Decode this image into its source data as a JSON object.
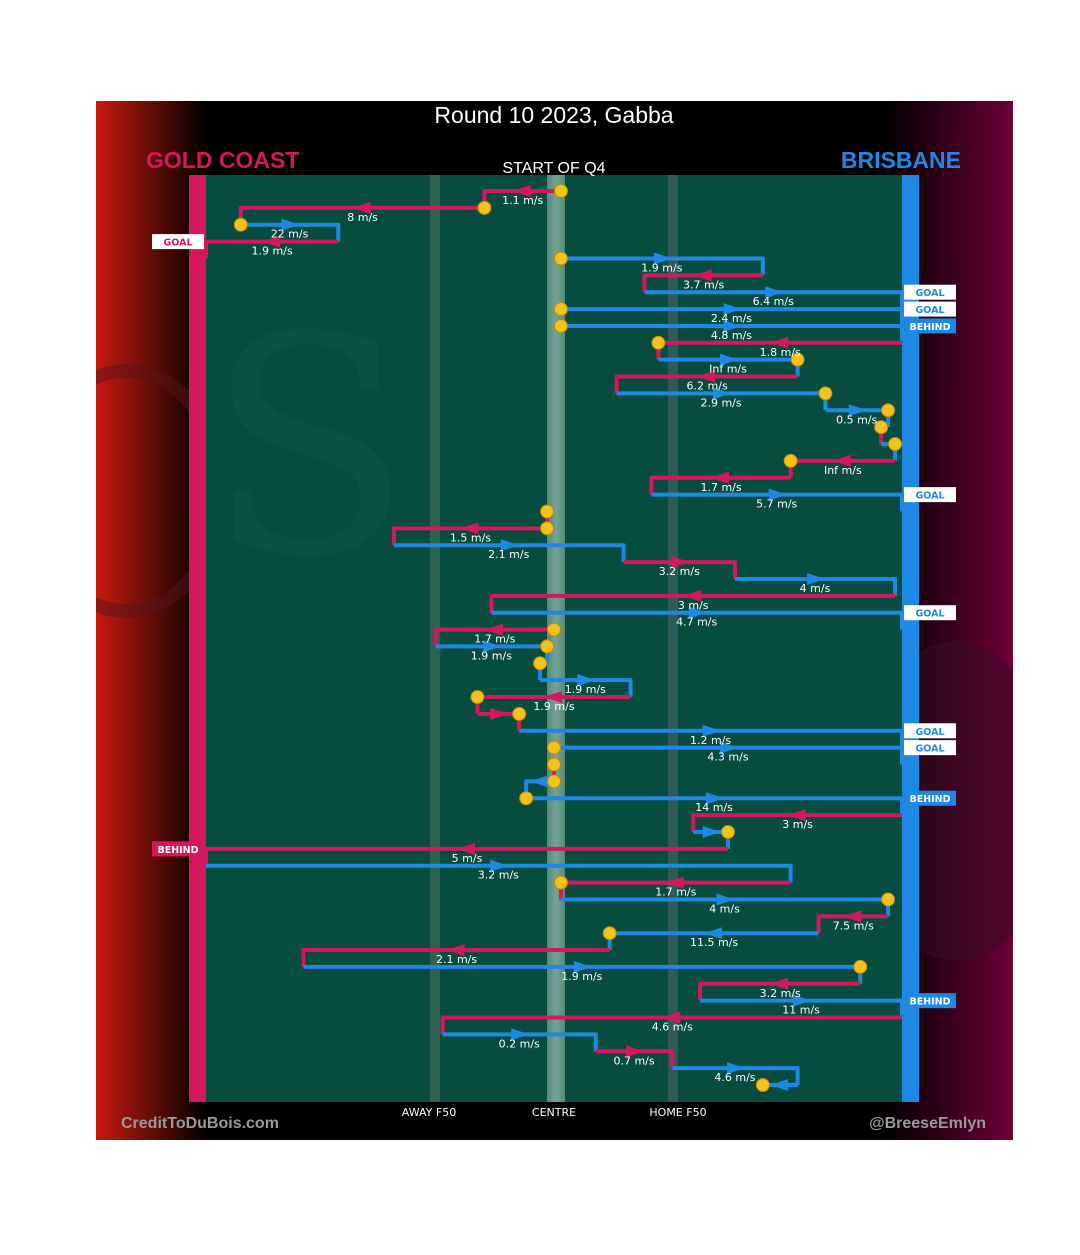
{
  "title": "Round 10 2023, Gabba",
  "subtitle": "START OF Q4",
  "teams": {
    "away": {
      "name": "GOLD COAST",
      "color": "#d4185b"
    },
    "home": {
      "name": "BRISBANE",
      "color": "#1e88e5"
    }
  },
  "axis_labels": {
    "away_f50": "AWAY F50",
    "centre": "CENTRE",
    "home_f50": "HOME F50"
  },
  "credits": {
    "left": "CreditToDuBois.com",
    "right": "@BreeseEmlyn"
  },
  "colors": {
    "background": "#000000",
    "ground": "#064d3f",
    "ball": "#f3c21b"
  },
  "chart_data": {
    "type": "line",
    "description_axis": "x = field position (0 = Gold Coast goal line, 100 = Brisbane goal line); chains listed top to bottom in time order",
    "xlim": [
      0,
      100
    ],
    "guides": [
      {
        "name": "AWAY F50",
        "x": 32
      },
      {
        "name": "CENTRE",
        "x": 50
      },
      {
        "name": "HOME F50",
        "x": 67.6
      }
    ],
    "segments": [
      {
        "team": "away",
        "from": 51,
        "to": 40,
        "label": "1.1 m/s",
        "start_ball": true
      },
      {
        "team": "away",
        "from": 40,
        "to": 5,
        "label": "8 m/s",
        "start_ball": true
      },
      {
        "team": "home",
        "from": 5,
        "to": 19,
        "label": "22 m/s",
        "start_ball": true
      },
      {
        "team": "away",
        "from": 19,
        "to": 0,
        "label": "1.9 m/s",
        "outcome": "GOAL"
      },
      {
        "team": "home",
        "from": 51,
        "to": 80,
        "label": "1.9 m/s",
        "start_ball": true
      },
      {
        "team": "away",
        "from": 80,
        "to": 63,
        "label": "3.7 m/s"
      },
      {
        "team": "home",
        "from": 63,
        "to": 100,
        "label": "6.4 m/s",
        "outcome": "GOAL"
      },
      {
        "team": "home",
        "from": 51,
        "to": 100,
        "label": "2.4 m/s",
        "start_ball": true,
        "outcome": "GOAL"
      },
      {
        "team": "home",
        "from": 51,
        "to": 100,
        "label": "4.8 m/s",
        "start_ball": true,
        "outcome": "BEHIND"
      },
      {
        "team": "away",
        "from": 100,
        "to": 65,
        "label": "1.8 m/s",
        "end_ball": true
      },
      {
        "team": "home",
        "from": 65,
        "to": 85,
        "label": "Inf m/s",
        "end_ball": true
      },
      {
        "team": "away",
        "from": 85,
        "to": 59,
        "label": "6.2 m/s"
      },
      {
        "team": "home",
        "from": 59,
        "to": 89,
        "label": "2.9 m/s",
        "end_ball": true
      },
      {
        "team": "home",
        "from": 89,
        "to": 98,
        "label": "0.5 m/s",
        "end_ball": true
      },
      {
        "team": "away",
        "from": 98,
        "to": 97,
        "label": "",
        "end_ball": true
      },
      {
        "team": "home",
        "from": 97,
        "to": 99,
        "label": "",
        "end_ball": true
      },
      {
        "team": "away",
        "from": 99,
        "to": 84,
        "label": "Inf m/s",
        "end_ball": true
      },
      {
        "team": "away",
        "from": 84,
        "to": 64,
        "label": "1.7 m/s"
      },
      {
        "team": "home",
        "from": 64,
        "to": 100,
        "label": "5.7 m/s",
        "outcome": "GOAL"
      },
      {
        "team": "away",
        "from": 49,
        "to": 49,
        "label": "",
        "start_ball": true
      },
      {
        "team": "away",
        "from": 49,
        "to": 27,
        "label": "1.5 m/s",
        "start_ball": true
      },
      {
        "team": "home",
        "from": 27,
        "to": 60,
        "label": "2.1 m/s"
      },
      {
        "team": "away",
        "from": 60,
        "to": 76,
        "label": "3.2 m/s"
      },
      {
        "team": "home",
        "from": 76,
        "to": 99,
        "label": "4 m/s"
      },
      {
        "team": "away",
        "from": 99,
        "to": 41,
        "label": "3 m/s"
      },
      {
        "team": "home",
        "from": 41,
        "to": 100,
        "label": "4.7 m/s",
        "outcome": "GOAL"
      },
      {
        "team": "away",
        "from": 50,
        "to": 33,
        "label": "1.7 m/s",
        "start_ball": true
      },
      {
        "team": "home",
        "from": 33,
        "to": 49,
        "label": "1.9 m/s",
        "end_ball": true
      },
      {
        "team": "home",
        "from": 49,
        "to": 48,
        "label": "",
        "end_ball": true
      },
      {
        "team": "home",
        "from": 48,
        "to": 61,
        "label": "1.9 m/s"
      },
      {
        "team": "away",
        "from": 61,
        "to": 39,
        "label": "1.9 m/s",
        "end_ball": true
      },
      {
        "team": "away",
        "from": 39,
        "to": 45,
        "label": "",
        "end_ball": true
      },
      {
        "team": "home",
        "from": 45,
        "to": 100,
        "label": "1.2 m/s",
        "outcome": "GOAL"
      },
      {
        "team": "home",
        "from": 50,
        "to": 100,
        "label": "4.3 m/s",
        "start_ball": true,
        "outcome": "GOAL"
      },
      {
        "team": "away",
        "from": 50,
        "to": 50,
        "label": "",
        "start_ball": true
      },
      {
        "team": "home",
        "from": 50,
        "to": 46,
        "label": "",
        "start_ball": true
      },
      {
        "team": "home",
        "from": 46,
        "to": 100,
        "label": "14 m/s",
        "start_ball": true,
        "outcome": "BEHIND"
      },
      {
        "team": "away",
        "from": 100,
        "to": 70,
        "label": "3 m/s"
      },
      {
        "team": "home",
        "from": 70,
        "to": 75,
        "label": "",
        "end_ball": true
      },
      {
        "team": "away",
        "from": 75,
        "to": 0,
        "label": "5 m/s",
        "outcome": "BEHIND"
      },
      {
        "team": "home",
        "from": 0,
        "to": 84,
        "label": "3.2 m/s"
      },
      {
        "team": "away",
        "from": 84,
        "to": 51,
        "label": "1.7 m/s",
        "end_ball": true
      },
      {
        "team": "home",
        "from": 51,
        "to": 98,
        "label": "4 m/s",
        "end_ball": true
      },
      {
        "team": "away",
        "from": 98,
        "to": 88,
        "label": "7.5 m/s"
      },
      {
        "team": "home",
        "from": 88,
        "to": 58,
        "label": "11.5 m/s",
        "end_ball": true
      },
      {
        "team": "away",
        "from": 58,
        "to": 14,
        "label": "2.1 m/s"
      },
      {
        "team": "home",
        "from": 14,
        "to": 94,
        "label": "1.9 m/s",
        "end_ball": true
      },
      {
        "team": "away",
        "from": 94,
        "to": 71,
        "label": "3.2 m/s"
      },
      {
        "team": "home",
        "from": 71,
        "to": 100,
        "label": "11 m/s",
        "outcome": "BEHIND"
      },
      {
        "team": "away",
        "from": 100,
        "to": 34,
        "label": "4.6 m/s"
      },
      {
        "team": "home",
        "from": 34,
        "to": 56,
        "label": "0.2 m/s"
      },
      {
        "team": "away",
        "from": 56,
        "to": 67,
        "label": "0.7 m/s"
      },
      {
        "team": "home",
        "from": 67,
        "to": 85,
        "label": "4.6 m/s"
      },
      {
        "team": "home",
        "from": 85,
        "to": 80,
        "label": "",
        "end_ball": true
      }
    ]
  }
}
